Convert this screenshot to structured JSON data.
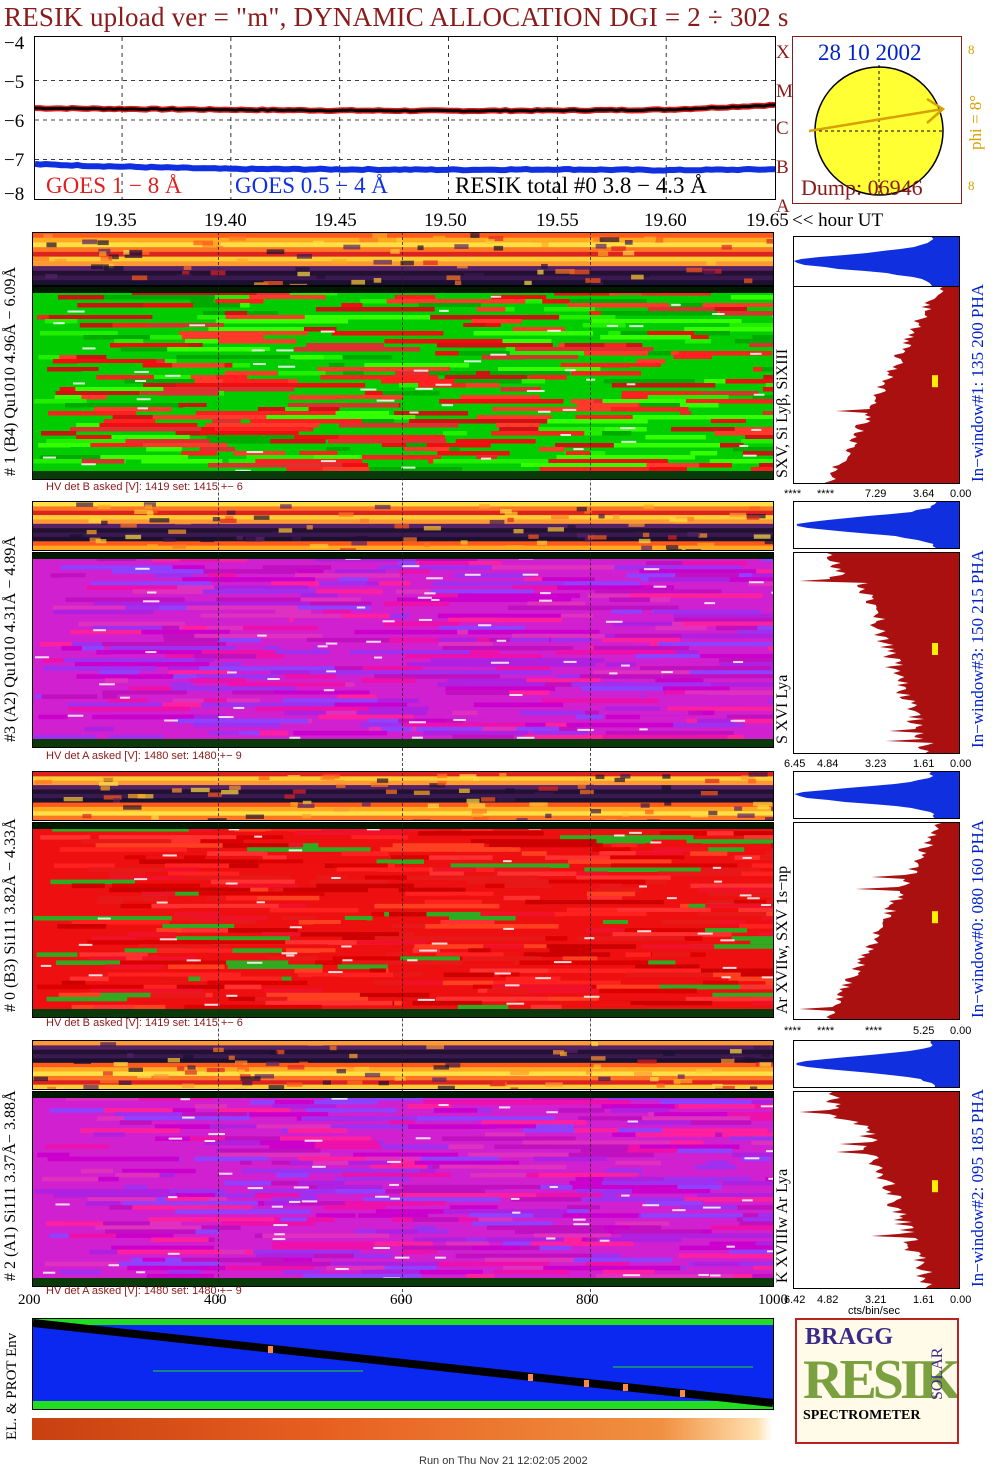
{
  "title": "RESIK upload ver = \"m\", DYNAMIC ALLOCATION  DGI =   2 ÷ 302 s",
  "goes_panel": {
    "y_ticks": [
      "−4",
      "−5",
      "−6",
      "−7",
      "−8"
    ],
    "class_letters": [
      "A",
      "B",
      "C",
      "M",
      "X"
    ],
    "legend_goes_long": "GOES 1 − 8 Å",
    "legend_goes_short": "GOES 0.5 − 4 Å",
    "legend_resik": "RESIK total #0  3.8 − 4.3 Å",
    "hour_ticks": [
      "19.35",
      "19.40",
      "19.45",
      "19.50",
      "19.55",
      "19.60",
      "19.65"
    ],
    "hour_unit": "<< hour UT",
    "colors": {
      "long": "#e02020",
      "short": "#1030e0",
      "total": "#000000"
    }
  },
  "sun": {
    "date": "28 10 2002",
    "phi_label": "phi =  8°",
    "degree_marks": [
      "8",
      "8",
      "8"
    ],
    "dump": "Dump: 06946",
    "colors": {
      "disk": "#ffff33",
      "arrow": "#d8a000",
      "frame": "#8b1a1a",
      "text": "#0022cc"
    }
  },
  "channels": [
    {
      "left_label": "# 1 (B4) Qu1010 4.96Å − 6.09Å",
      "line_label": "SXV, Si Lyβ, SiXIII",
      "window_label": "In−window#1:  135 200 PHA",
      "hv_text": "HV det B asked [V]:  1419 set:  1415 +−    6",
      "hist_ticks": [
        "****",
        "****",
        "7.29",
        "3.64",
        "0.00"
      ],
      "palette": "green"
    },
    {
      "left_label": "#3 (A2) Qu1010  4.31Å − 4.89Å",
      "line_label": "S XVI Lya",
      "window_label": "In−window#3:  150 215 PHA",
      "hv_text": "HV det A asked [V]:  1480 set:  1480 +−    9",
      "hist_ticks": [
        "6.45",
        "4.84",
        "3.23",
        "1.61",
        "0.00"
      ],
      "palette": "magenta"
    },
    {
      "left_label": "# 0 (B3) Si111  3.82Å − 4.33Å",
      "line_label": "Ar XVIIw,  SXV 1s−np",
      "window_label": "In−window#0:  080 160 PHA",
      "hv_text": "HV det B asked [V]:  1419 set:  1415 +−    6",
      "hist_ticks": [
        "****",
        "****",
        "****",
        "5.25",
        "0.00"
      ],
      "palette": "red"
    },
    {
      "left_label": "# 2 (A1) Si111  3.37Å−  3.88Å",
      "line_label": "K XVIIIw  Ar Lya",
      "window_label": "In−window#2:  095 185 PHA",
      "hv_text": "HV det A asked [V]:  1480 set:  1480 +−    9",
      "hist_ticks": [
        "6.42",
        "4.82",
        "3.21",
        "1.61",
        "0.00"
      ],
      "palette": "magenta"
    }
  ],
  "hist_unit": "cts/bin/sec",
  "env_panel": {
    "label": "EL. & PROT Env",
    "x_ticks": [
      "200",
      "400",
      "600",
      "800",
      "1000"
    ]
  },
  "logo": {
    "bragg": "BRAGG",
    "resik": "RESIK",
    "solar": "SOLAR",
    "spectrometer": "SPECTROMETER"
  },
  "footer": "Run on Thu Nov 21 12:02:05 2002",
  "chart_data": {
    "type": "line",
    "x_label": "hour UT",
    "x_range": [
      19.31,
      19.65
    ],
    "y_range": [
      -8,
      -3.9
    ],
    "series": [
      {
        "name": "GOES 1 − 8 Å",
        "x": [
          19.31,
          19.35,
          19.4,
          19.45,
          19.5,
          19.55,
          19.6,
          19.65
        ],
        "y": [
          -5.7,
          -5.72,
          -5.74,
          -5.76,
          -5.77,
          -5.76,
          -5.74,
          -5.62
        ]
      },
      {
        "name": "GOES 0.5 − 4 Å",
        "x": [
          19.31,
          19.35,
          19.4,
          19.45,
          19.5,
          19.55,
          19.6,
          19.65
        ],
        "y": [
          -7.12,
          -7.18,
          -7.24,
          -7.25,
          -7.26,
          -7.25,
          -7.27,
          -7.25
        ]
      }
    ],
    "env_x_range": [
      200,
      1000
    ]
  }
}
